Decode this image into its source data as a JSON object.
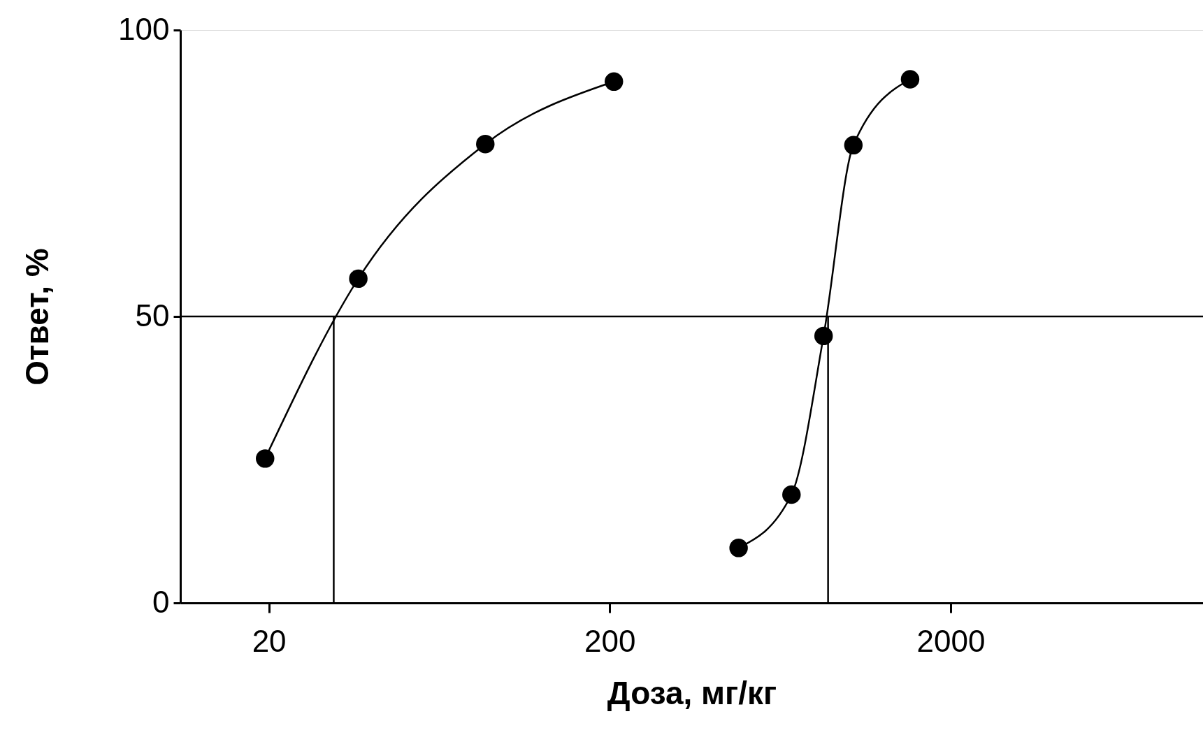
{
  "chart_data": {
    "type": "line",
    "xlabel": "Доза, мг/кг",
    "ylabel": "Ответ, %",
    "log": "x",
    "xlim": [
      11,
      11000
    ],
    "ylim": [
      0,
      100
    ],
    "xticks": [
      20,
      200,
      2000
    ],
    "yticks": [
      0,
      50,
      100
    ],
    "grid": false,
    "series": [
      {
        "color": "#000000",
        "marker": "circle",
        "x": [
          19.5,
          36.6,
          86.3,
          205.7
        ],
        "values": [
          25.2,
          56.6,
          80.1,
          91.0
        ]
      },
      {
        "color": "#000000",
        "marker": "circle",
        "x": [
          477.6,
          682.6,
          847.9,
          1037,
          1521
        ],
        "values": [
          9.6,
          18.9,
          46.6,
          79.9,
          91.4
        ]
      },
      {
        "color": "#000000",
        "marker": "none",
        "x": [
          31,
          31
        ],
        "values": [
          0,
          50
        ]
      },
      {
        "color": "#000000",
        "marker": "none",
        "x": [
          874,
          874
        ],
        "values": [
          0,
          50
        ]
      }
    ],
    "ref_lines": [
      {
        "axis": "y",
        "value": 50
      }
    ]
  }
}
